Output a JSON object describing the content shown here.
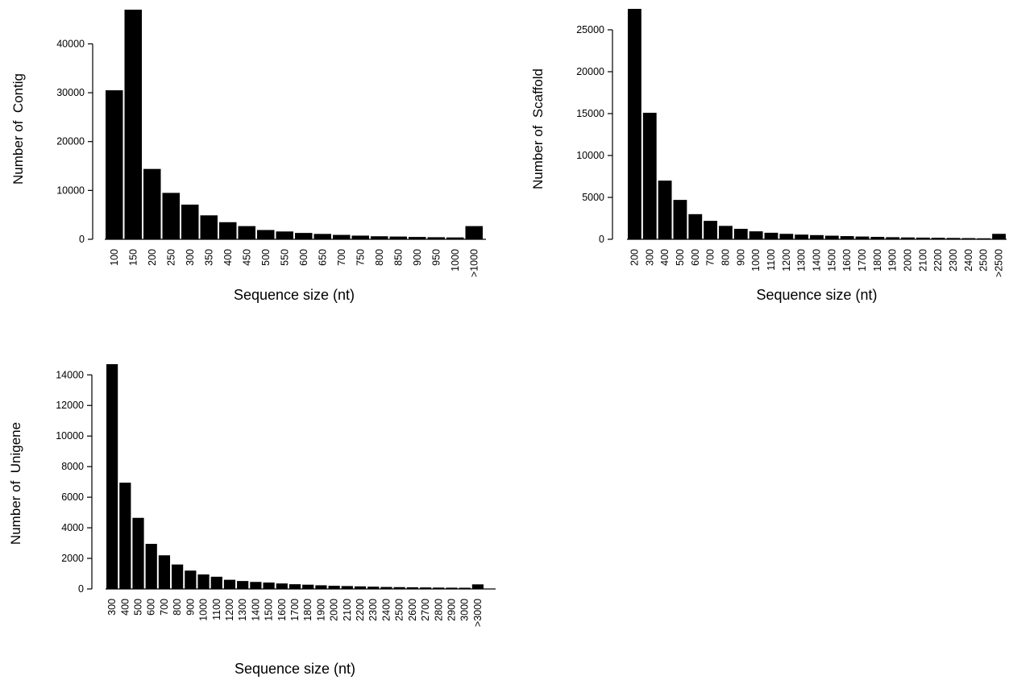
{
  "chart_data": [
    {
      "type": "bar",
      "title": "",
      "xlabel": "Sequence size (nt)",
      "ylabel": "Number of  Contig",
      "ylim": [
        0,
        47000
      ],
      "yticks": [
        0,
        10000,
        20000,
        30000,
        40000
      ],
      "grid": false,
      "categories": [
        "100",
        "150",
        "200",
        "250",
        "300",
        "350",
        "400",
        "450",
        "500",
        "550",
        "600",
        "650",
        "700",
        "750",
        "800",
        "850",
        "900",
        "950",
        "1000",
        ">1000"
      ],
      "values": [
        30500,
        47000,
        14400,
        9500,
        7100,
        4900,
        3500,
        2700,
        1900,
        1600,
        1300,
        1100,
        900,
        750,
        620,
        560,
        480,
        420,
        380,
        2700
      ]
    },
    {
      "type": "bar",
      "title": "",
      "xlabel": "Sequence size (nt)",
      "ylabel": "Number of  Scaffold",
      "ylim": [
        0,
        27500
      ],
      "yticks": [
        0,
        5000,
        10000,
        15000,
        20000,
        25000
      ],
      "grid": false,
      "categories": [
        "200",
        "300",
        "400",
        "500",
        "600",
        "700",
        "800",
        "900",
        "1000",
        "1100",
        "1200",
        "1300",
        "1400",
        "1500",
        "1600",
        "1700",
        "1800",
        "1900",
        "2000",
        "2100",
        "2200",
        "2300",
        "2400",
        "2500",
        ">2500"
      ],
      "values": [
        27500,
        15100,
        7000,
        4700,
        3000,
        2200,
        1600,
        1250,
        950,
        780,
        650,
        560,
        500,
        430,
        380,
        330,
        290,
        250,
        220,
        200,
        180,
        160,
        140,
        120,
        650
      ]
    },
    {
      "type": "bar",
      "title": "",
      "xlabel": "Sequence size (nt)",
      "ylabel": "Number of  Unigene",
      "ylim": [
        0,
        14700
      ],
      "yticks": [
        0,
        2000,
        4000,
        6000,
        8000,
        10000,
        12000,
        14000
      ],
      "grid": false,
      "categories": [
        "300",
        "400",
        "500",
        "600",
        "700",
        "800",
        "900",
        "1000",
        "1100",
        "1200",
        "1300",
        "1400",
        "1500",
        "1600",
        "1700",
        "1800",
        "1900",
        "2000",
        "2100",
        "2200",
        "2300",
        "2400",
        "2500",
        "2600",
        "2700",
        "2800",
        "2900",
        "3000",
        ">3000"
      ],
      "values": [
        14700,
        6950,
        4650,
        2950,
        2200,
        1600,
        1200,
        950,
        800,
        600,
        520,
        460,
        420,
        360,
        310,
        280,
        240,
        210,
        190,
        170,
        150,
        130,
        120,
        110,
        100,
        90,
        85,
        80,
        300
      ]
    }
  ]
}
